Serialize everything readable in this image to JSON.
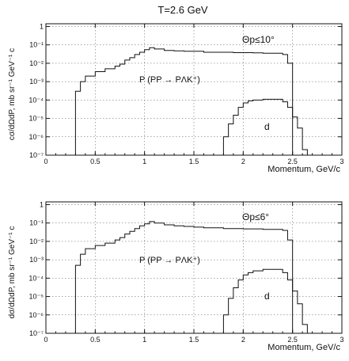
{
  "figure_title": "T=2.6 GeV",
  "chart_data": [
    {
      "type": "line",
      "drawstyle": "steps",
      "xlabel": "Momentum, GeV/c",
      "ylabel": "cσ/dΩdP, mb sr⁻¹ GeV⁻¹ c",
      "annotation": "Θp≤10°",
      "xlim": [
        0,
        3
      ],
      "ylim_log10": [
        -7,
        0.15
      ],
      "log_y": true,
      "grid": true,
      "x_ticks": [
        "0",
        "0.5",
        "1",
        "1.5",
        "2",
        "2.5",
        "3"
      ],
      "y_ticks": [
        "1",
        "10⁻¹",
        "10⁻²",
        "10⁻³",
        "10⁻⁴",
        "10⁻⁵",
        "10⁻⁶",
        "10⁻⁷"
      ],
      "series": [
        {
          "name": "P (PP → PΛK⁺)",
          "x": [
            0.3,
            0.35,
            0.4,
            0.5,
            0.6,
            0.7,
            0.75,
            0.8,
            0.85,
            0.9,
            0.95,
            1.0,
            1.05,
            1.1,
            1.2,
            1.3,
            1.4,
            1.5,
            1.6,
            1.7,
            1.8,
            1.9,
            2.0,
            2.1,
            2.2,
            2.3,
            2.4,
            2.45
          ],
          "y": [
            0.0003,
            0.001,
            0.002,
            0.0035,
            0.005,
            0.007,
            0.009,
            0.015,
            0.02,
            0.03,
            0.04,
            0.055,
            0.07,
            0.06,
            0.05,
            0.047,
            0.045,
            0.045,
            0.04,
            0.04,
            0.04,
            0.038,
            0.038,
            0.037,
            0.035,
            0.035,
            0.03,
            0.01
          ]
        },
        {
          "name": "d",
          "x": [
            1.8,
            1.85,
            1.9,
            1.95,
            2.0,
            2.05,
            2.1,
            2.2,
            2.3,
            2.4,
            2.45,
            2.5,
            2.55,
            2.6
          ],
          "y": [
            1e-06,
            5e-06,
            1.5e-05,
            4e-05,
            7e-05,
            9e-05,
            0.0001,
            0.00011,
            0.00011,
            8e-05,
            4e-05,
            1.2e-05,
            3e-06,
            2e-07
          ]
        }
      ]
    },
    {
      "type": "line",
      "drawstyle": "steps",
      "xlabel": "Momentum, GeV/c",
      "ylabel": "dσ/dΩdP, mb sr⁻¹ GeV⁻¹ c",
      "annotation": "Θp≤6°",
      "xlim": [
        0,
        3
      ],
      "ylim_log10": [
        -7,
        0.15
      ],
      "log_y": true,
      "grid": true,
      "x_ticks": [
        "0",
        "0.5",
        "1",
        "1.5",
        "2",
        "2.5",
        "3"
      ],
      "y_ticks": [
        "1",
        "10⁻¹",
        "10⁻²",
        "10⁻³",
        "10⁻⁴",
        "10⁻⁵",
        "10⁻⁶",
        "10⁻⁷"
      ],
      "series": [
        {
          "name": "P (PP → PΛK⁺)",
          "x": [
            0.3,
            0.35,
            0.4,
            0.5,
            0.6,
            0.7,
            0.75,
            0.8,
            0.85,
            0.9,
            0.95,
            1.0,
            1.05,
            1.1,
            1.2,
            1.3,
            1.4,
            1.5,
            1.6,
            1.7,
            1.8,
            1.9,
            2.0,
            2.1,
            2.2,
            2.3,
            2.4,
            2.45
          ],
          "y": [
            0.0005,
            0.002,
            0.004,
            0.006,
            0.008,
            0.012,
            0.016,
            0.025,
            0.035,
            0.05,
            0.07,
            0.09,
            0.12,
            0.1,
            0.08,
            0.07,
            0.065,
            0.06,
            0.055,
            0.055,
            0.05,
            0.05,
            0.048,
            0.048,
            0.045,
            0.045,
            0.04,
            0.012
          ]
        },
        {
          "name": "d",
          "x": [
            1.8,
            1.85,
            1.9,
            1.95,
            2.0,
            2.05,
            2.1,
            2.2,
            2.3,
            2.4,
            2.45,
            2.5,
            2.55,
            2.6
          ],
          "y": [
            1e-06,
            8e-06,
            3e-05,
            8e-05,
            0.00015,
            0.0002,
            0.00025,
            0.0003,
            0.0003,
            0.0002,
            8e-05,
            2e-05,
            4e-06,
            3e-07
          ]
        }
      ]
    }
  ]
}
